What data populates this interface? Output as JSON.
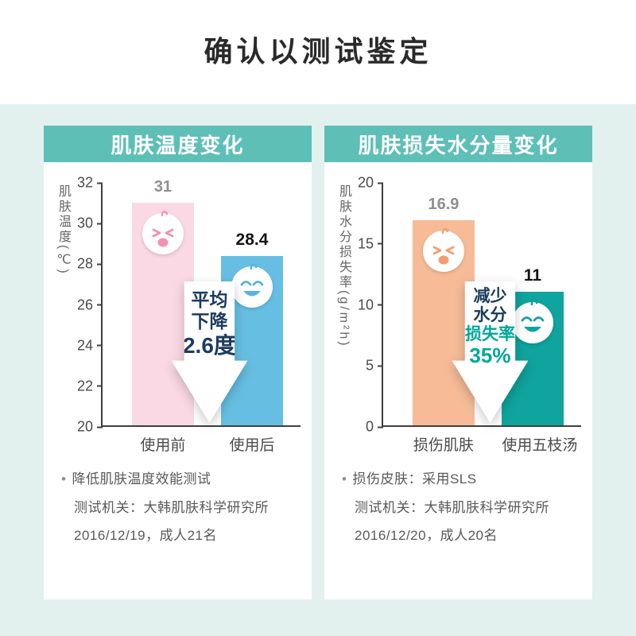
{
  "page_title": "确认以测试鉴定",
  "colors": {
    "background": "#ffffff",
    "section_mint": "#e3f1ee",
    "header_teal": "#5ebfb7",
    "arrow_text_navy": "#1c3b5e",
    "arrow_text_green": "#00a79b"
  },
  "chart_data": [
    {
      "type": "bar",
      "title": "肌肤温度变化",
      "ylabel": "肌肤温度(℃)",
      "categories": [
        "使用前",
        "使用后"
      ],
      "values": [
        31,
        28.4
      ],
      "ylim": [
        20,
        32
      ],
      "yticks": [
        32,
        30,
        28,
        26,
        24,
        22,
        20
      ],
      "bar_colors": [
        "#fad9e5",
        "#66bfe3"
      ],
      "annotation_lines": [
        "平均",
        "下降",
        "2.6度"
      ],
      "grid": false,
      "legend": "none"
    },
    {
      "type": "bar",
      "title": "肌肤损失水分量变化",
      "ylabel": "肌肤水分损失率(g/m²h)",
      "categories": [
        "损伤肌肤",
        "使用五枝汤"
      ],
      "values": [
        16.9,
        11
      ],
      "ylim": [
        0,
        20
      ],
      "yticks": [
        20,
        15,
        10,
        5,
        0
      ],
      "bar_colors": [
        "#f7bb97",
        "#0fa49d"
      ],
      "annotation_lines": [
        "减少",
        "水分",
        "损失率",
        "35%"
      ],
      "grid": false,
      "legend": "none"
    }
  ],
  "panels": [
    {
      "bullet": "•",
      "notes": [
        "降低肌肤温度效能测试",
        "测试机关：大韩肌肤科学研究所",
        "2016/12/19，成人21名"
      ]
    },
    {
      "bullet": "•",
      "notes": [
        "损伤皮肤：采用SLS",
        "测试机关：大韩肌肤科学研究所",
        "2016/12/20，成人20名"
      ]
    }
  ]
}
